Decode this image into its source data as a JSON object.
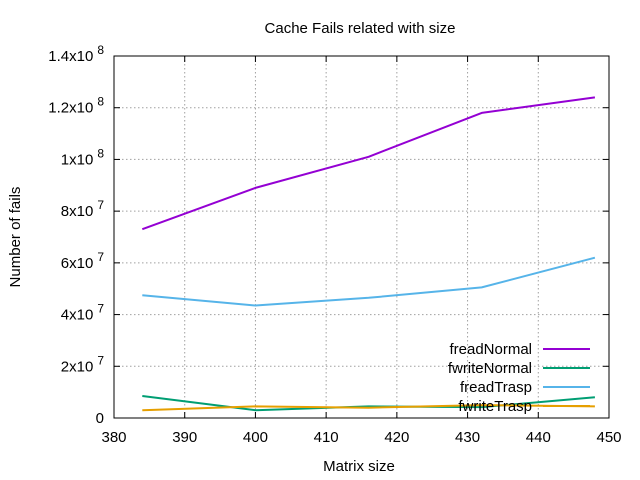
{
  "chart_data": {
    "type": "line",
    "title": "Cache Fails related with size",
    "xlabel": "Matrix size",
    "ylabel": "Number of fails",
    "xlim": [
      380,
      450
    ],
    "ylim": [
      0,
      140000000
    ],
    "xticks": [
      380,
      390,
      400,
      410,
      420,
      430,
      440,
      450
    ],
    "yticks": [
      0,
      20000000,
      40000000,
      60000000,
      80000000,
      100000000,
      120000000,
      140000000
    ],
    "xtick_labels": [
      "380",
      "390",
      "400",
      "410",
      "420",
      "430",
      "440",
      "450"
    ],
    "ytick_labels": [
      {
        "mant": "0",
        "exp": ""
      },
      {
        "mant": "2x10",
        "exp": "7"
      },
      {
        "mant": "4x10",
        "exp": "7"
      },
      {
        "mant": "6x10",
        "exp": "7"
      },
      {
        "mant": "8x10",
        "exp": "7"
      },
      {
        "mant": "1x10",
        "exp": "8"
      },
      {
        "mant": "1.2x10",
        "exp": "8"
      },
      {
        "mant": "1.4x10",
        "exp": "8"
      }
    ],
    "grid": true,
    "legend_position": "bottom-right",
    "x": [
      384,
      400,
      416,
      432,
      448
    ],
    "series": [
      {
        "name": "freadNormal",
        "color": "#9400d3",
        "values": [
          73000000,
          89000000,
          101000000,
          118000000,
          124000000
        ]
      },
      {
        "name": "fwriteNormal",
        "color": "#009e73",
        "values": [
          8500000,
          3000000,
          4500000,
          4200000,
          8000000
        ]
      },
      {
        "name": "freadTrasp",
        "color": "#56b4e9",
        "values": [
          47500000,
          43500000,
          46500000,
          50500000,
          62000000
        ]
      },
      {
        "name": "fwriteTrasp",
        "color": "#e69f00",
        "values": [
          3000000,
          4500000,
          4000000,
          5000000,
          4500000
        ]
      }
    ]
  }
}
